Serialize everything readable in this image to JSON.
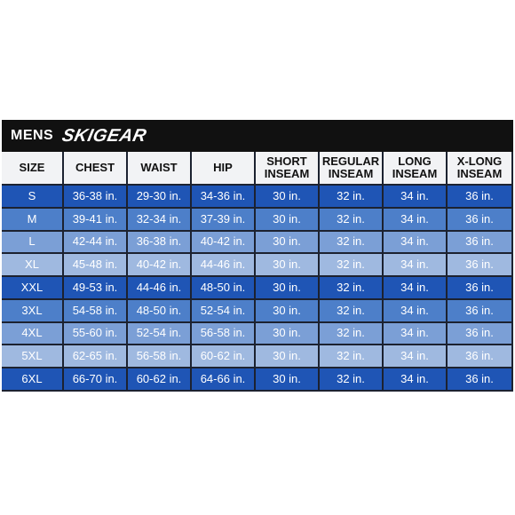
{
  "title": {
    "prefix": "MENS",
    "brand": "SKIGEAR"
  },
  "table": {
    "headers": [
      "SIZE",
      "CHEST",
      "WAIST",
      "HIP",
      "SHORT INSEAM",
      "REGULAR INSEAM",
      "LONG INSEAM",
      "X-LONG INSEAM"
    ],
    "rows": [
      [
        "S",
        "36-38 in.",
        "29-30 in.",
        "34-36 in.",
        "30 in.",
        "32 in.",
        "34 in.",
        "36 in."
      ],
      [
        "M",
        "39-41 in.",
        "32-34 in.",
        "37-39 in.",
        "30 in.",
        "32 in.",
        "34 in.",
        "36 in."
      ],
      [
        "L",
        "42-44 in.",
        "36-38 in.",
        "40-42 in.",
        "30 in.",
        "32 in.",
        "34 in.",
        "36 in."
      ],
      [
        "XL",
        "45-48 in.",
        "40-42 in.",
        "44-46 in.",
        "30 in.",
        "32 in.",
        "34 in.",
        "36 in."
      ],
      [
        "XXL",
        "49-53 in.",
        "44-46 in.",
        "48-50 in.",
        "30 in.",
        "32 in.",
        "34 in.",
        "36 in."
      ],
      [
        "3XL",
        "54-58 in.",
        "48-50 in.",
        "52-54 in.",
        "30 in.",
        "32 in.",
        "34 in.",
        "36 in."
      ],
      [
        "4XL",
        "55-60 in.",
        "52-54 in.",
        "56-58 in.",
        "30 in.",
        "32 in.",
        "34 in.",
        "36 in."
      ],
      [
        "5XL",
        "62-65 in.",
        "56-58 in.",
        "60-62 in.",
        "30 in.",
        "32 in.",
        "34 in.",
        "36 in."
      ],
      [
        "6XL",
        "66-70 in.",
        "60-62 in.",
        "64-66 in.",
        "30 in.",
        "32 in.",
        "34 in.",
        "36 in."
      ]
    ],
    "row_colors": [
      "#1f55b5",
      "#4d7fc9",
      "#7b9fd6",
      "#9fb9e0",
      "#1f55b5",
      "#4d7fc9",
      "#7b9fd6",
      "#9fb9e0",
      "#1f55b5"
    ],
    "header_color": "#f2f3f5"
  }
}
